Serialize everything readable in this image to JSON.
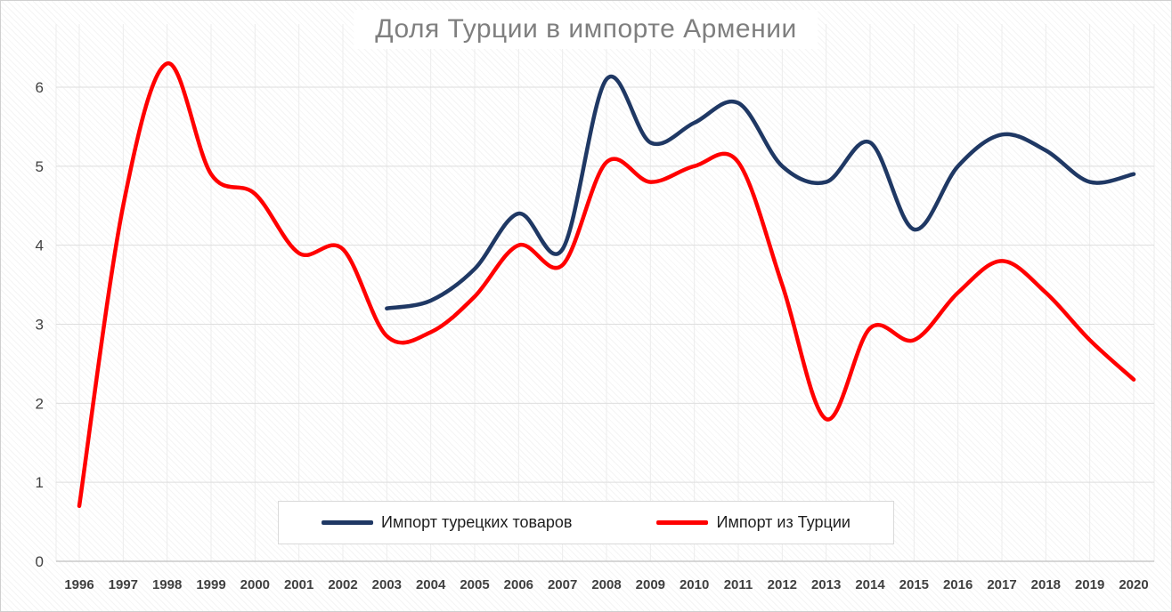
{
  "title": "Доля Турции в импорте Армении",
  "colors": {
    "series_blue": "#1f3864",
    "series_red": "#ff0000",
    "title_text": "#7f7f7f",
    "axis_text": "#404040",
    "gridline": "#e2e2e2"
  },
  "chart_data": {
    "type": "line",
    "title": "Доля Турции в импорте Армении",
    "x": [
      1996,
      1997,
      1998,
      1999,
      2000,
      2001,
      2002,
      2003,
      2004,
      2005,
      2006,
      2007,
      2008,
      2009,
      2010,
      2011,
      2012,
      2013,
      2014,
      2015,
      2016,
      2017,
      2018,
      2019,
      2020
    ],
    "series": [
      {
        "name": "Импорт турецких товаров",
        "color": "#1f3864",
        "values": [
          null,
          null,
          null,
          null,
          null,
          null,
          null,
          3.2,
          3.3,
          3.7,
          4.4,
          3.95,
          6.1,
          5.3,
          5.55,
          5.8,
          5.0,
          4.8,
          5.3,
          4.2,
          5.0,
          5.4,
          5.2,
          4.8,
          4.9
        ]
      },
      {
        "name": "Импорт из Турции",
        "color": "#ff0000",
        "values": [
          0.7,
          4.5,
          6.3,
          4.9,
          4.65,
          3.9,
          3.95,
          2.85,
          2.9,
          3.35,
          4.0,
          3.75,
          5.05,
          4.8,
          5.0,
          5.05,
          3.5,
          1.8,
          2.95,
          2.8,
          3.4,
          3.8,
          3.4,
          2.8,
          2.3
        ]
      }
    ],
    "xlabel": "",
    "ylabel": "",
    "ylim": [
      0,
      6.5
    ],
    "yticks": [
      0,
      1,
      2,
      3,
      4,
      5,
      6
    ],
    "grid": "both",
    "legend_position": "bottom-center",
    "line_smoothing": true
  }
}
